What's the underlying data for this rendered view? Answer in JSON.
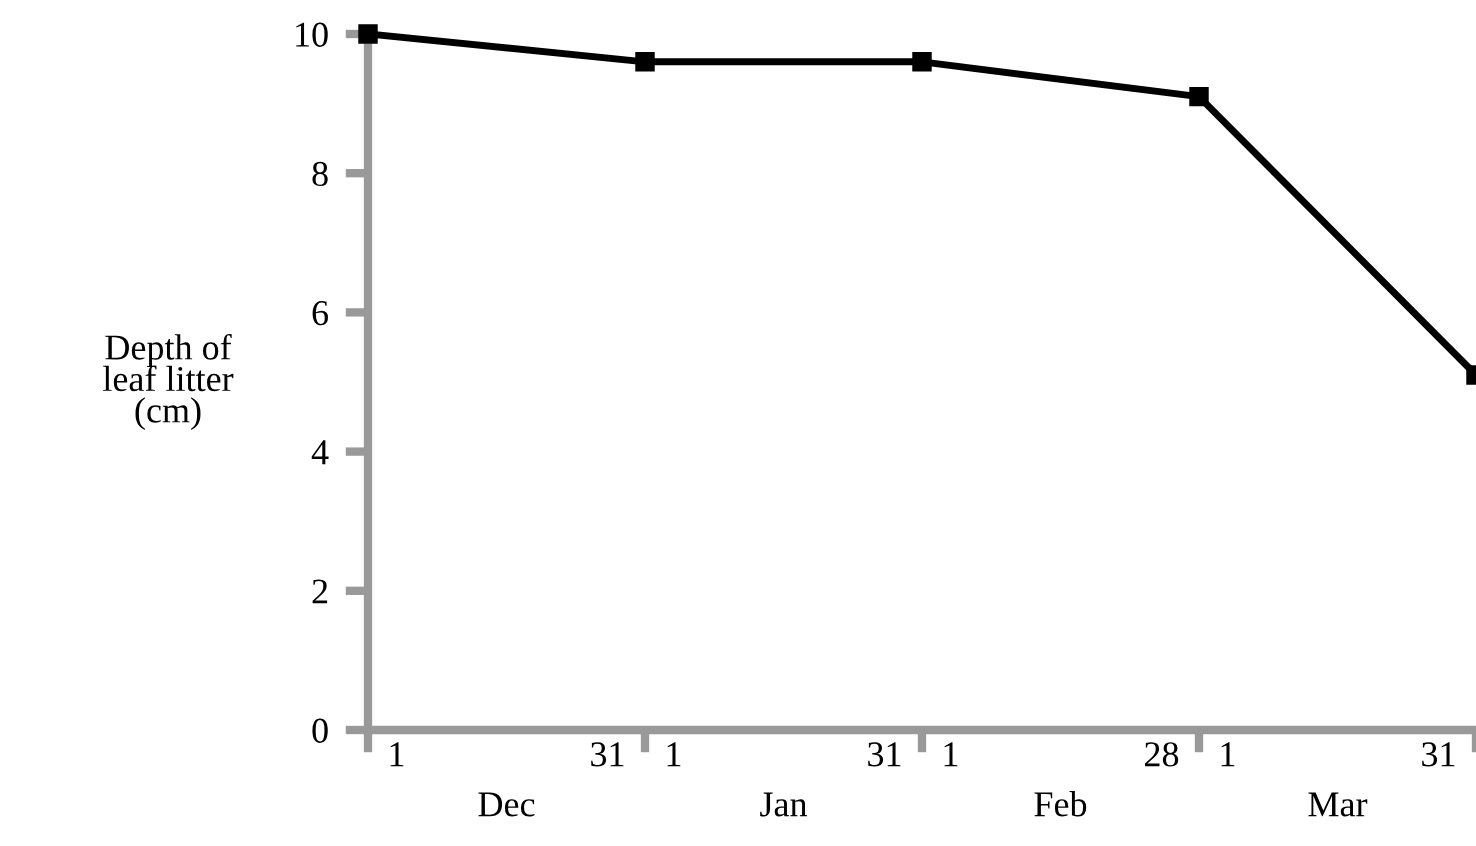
{
  "chart_data": {
    "type": "line",
    "ylabel": "Depth of\nleaf litter\n(cm)",
    "categories": [
      null,
      null,
      null,
      null,
      null
    ],
    "series": [
      {
        "color": "#000000",
        "values": [
          10,
          9.6,
          9.6,
          9.1,
          5.1
        ]
      }
    ],
    "marker": "square",
    "line_style": "solid",
    "ylim": [
      0,
      10
    ],
    "yticks": [
      0,
      2,
      4,
      6,
      8,
      10
    ],
    "annotations": [
      "1",
      "31",
      "1",
      "31",
      "1",
      "28",
      "1",
      "31",
      "Dec",
      "Jan",
      "Feb",
      "Mar"
    ],
    "grid": false,
    "legend": false
  }
}
